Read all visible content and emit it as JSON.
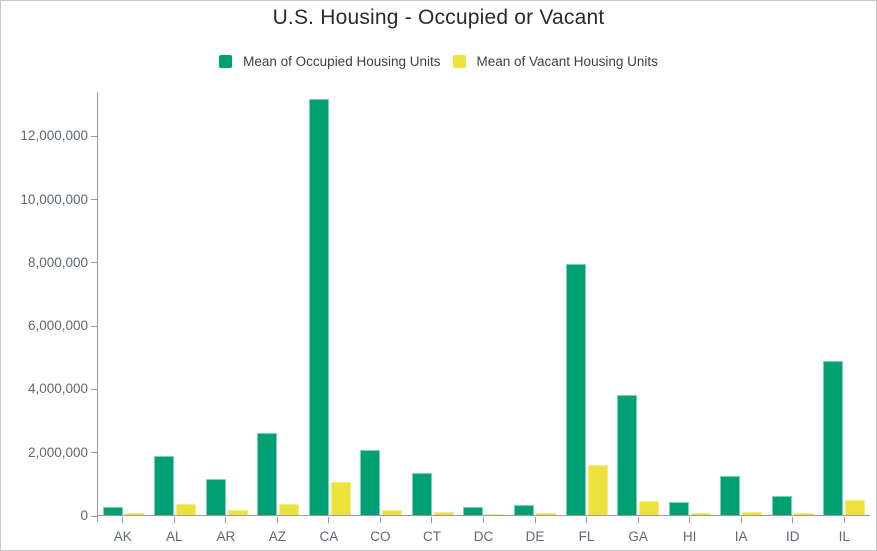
{
  "window_title": "U.S. Housing - Occupied or Vacant",
  "chart_data": {
    "type": "bar",
    "title": "U.S. Housing - Occupied or Vacant",
    "xlabel": "",
    "ylabel": "",
    "categories": [
      "AK",
      "AL",
      "AR",
      "AZ",
      "CA",
      "CO",
      "CT",
      "DC",
      "DE",
      "FL",
      "GA",
      "HI",
      "IA",
      "ID",
      "IL"
    ],
    "series": [
      {
        "name": "Mean of Occupied Housing Units",
        "color": "#00A075",
        "stroke": "#7FD0B5",
        "values": [
          250000,
          1850000,
          1130000,
          2600000,
          13150000,
          2070000,
          1340000,
          250000,
          330000,
          7930000,
          3790000,
          420000,
          1240000,
          600000,
          4870000
        ]
      },
      {
        "name": "Mean of Vacant Housing Units",
        "color": "#EDE13C",
        "stroke": "#F4EC86",
        "values": [
          60000,
          350000,
          150000,
          360000,
          1050000,
          160000,
          90000,
          30000,
          60000,
          1580000,
          450000,
          60000,
          90000,
          70000,
          460000
        ]
      }
    ],
    "ylim": [
      0,
      13400000
    ],
    "y_ticks": [
      {
        "value": 0,
        "label": "0"
      },
      {
        "value": 2000000,
        "label": "2,000,000"
      },
      {
        "value": 4000000,
        "label": "4,000,000"
      },
      {
        "value": 6000000,
        "label": "6,000,000"
      },
      {
        "value": 8000000,
        "label": "8,000,000"
      },
      {
        "value": 10000000,
        "label": "10,000,000"
      },
      {
        "value": 12000000,
        "label": "12,000,000"
      }
    ],
    "grid": false,
    "legend_position": "top-center"
  },
  "colors": {
    "canvas_border": "#c9c9c9",
    "axis_line": "#9b9b9b",
    "tick_label_text": "#5f6a72",
    "title_text": "#2b2b2b",
    "legend_text": "#3c4043",
    "background": "#ffffff"
  }
}
